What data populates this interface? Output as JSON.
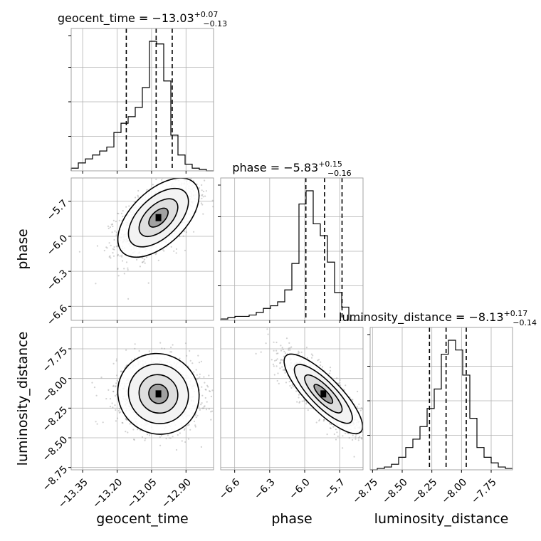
{
  "chart_data": {
    "type": "corner",
    "parameters": [
      "geocent_time",
      "phase",
      "luminosity_distance"
    ],
    "titles": [
      {
        "name": "geocent_time",
        "median": "−13.03",
        "upper": "+0.07",
        "lower": "−0.13"
      },
      {
        "name": "phase",
        "median": "−5.83",
        "upper": "+0.15",
        "lower": "−0.16"
      },
      {
        "name": "luminosity_distance",
        "median": "−8.13",
        "upper": "+0.17",
        "lower": "−0.14"
      }
    ],
    "ranges": {
      "geocent_time": [
        -13.4,
        -12.78
      ],
      "phase": [
        -6.72,
        -5.5
      ],
      "luminosity_distance": [
        -8.77,
        -7.57
      ]
    },
    "ticks": {
      "geocent_time": [
        -13.35,
        -13.2,
        -13.05,
        -12.9
      ],
      "phase": [
        -6.6,
        -6.3,
        -6.0,
        -5.7
      ],
      "luminosity_distance": [
        -8.75,
        -8.5,
        -8.25,
        -8.0,
        -7.75
      ]
    },
    "tick_labels": {
      "geocent_time": [
        "−13.35",
        "−13.20",
        "−13.05",
        "−12.90"
      ],
      "phase": [
        "−6.6",
        "−6.3",
        "−6.0",
        "−5.7"
      ],
      "luminosity_distance": [
        "−8.75",
        "−8.50",
        "−8.25",
        "−8.00",
        "−7.75"
      ]
    },
    "quantiles": {
      "geocent_time": [
        -13.16,
        -13.03,
        -12.96
      ],
      "phase": [
        -5.99,
        -5.83,
        -5.68
      ],
      "luminosity_distance": [
        -8.27,
        -8.13,
        -7.96
      ]
    },
    "histograms": {
      "geocent_time": {
        "edges_range": [
          -13.4,
          -12.78
        ],
        "counts": [
          2,
          6,
          9,
          12,
          15,
          18,
          29,
          36,
          41,
          48,
          63,
          98,
          96,
          68,
          27,
          12,
          5,
          2,
          1,
          0
        ]
      },
      "phase": {
        "edges_range": [
          -6.72,
          -5.5
        ],
        "counts": [
          1,
          2,
          3,
          3,
          4,
          6,
          9,
          11,
          14,
          23,
          43,
          88,
          98,
          73,
          64,
          44,
          21,
          10,
          0,
          0
        ]
      },
      "luminosity_distance": {
        "edges_range": [
          -8.77,
          -7.57
        ],
        "counts": [
          0,
          1,
          2,
          4,
          9,
          16,
          22,
          31,
          44,
          58,
          83,
          93,
          86,
          68,
          37,
          16,
          9,
          5,
          2,
          1
        ]
      }
    },
    "correlations": {
      "phase_vs_geocent_time": {
        "center": [
          -13.02,
          -5.84
        ],
        "sigma": [
          0.085,
          0.16
        ],
        "rho": 0.55
      },
      "luminosity_distance_vs_geocent_time": {
        "center": [
          -13.02,
          -8.13
        ],
        "sigma": [
          0.09,
          0.15
        ],
        "rho": -0.05
      },
      "luminosity_distance_vs_phase": {
        "center": [
          -5.84,
          -8.13
        ],
        "sigma": [
          0.16,
          0.16
        ],
        "rho": -0.82
      }
    },
    "grid": true
  }
}
